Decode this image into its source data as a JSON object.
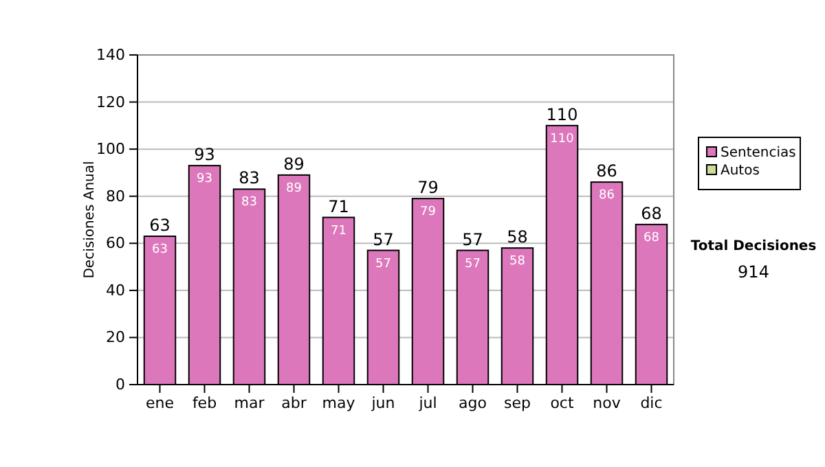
{
  "chart_data": {
    "type": "bar",
    "stacked": true,
    "ylabel": "Decisiones Anual",
    "categories": [
      "ene",
      "feb",
      "mar",
      "abr",
      "may",
      "jun",
      "jul",
      "ago",
      "sep",
      "oct",
      "nov",
      "dic"
    ],
    "series": [
      {
        "name": "Sentencias",
        "color": "#dd77bb",
        "values": [
          63,
          93,
          83,
          89,
          71,
          57,
          79,
          57,
          58,
          110,
          86,
          68
        ],
        "value_labels": [
          "63",
          "93",
          "83",
          "89",
          "71",
          "57",
          "79",
          "57",
          "58",
          "110",
          "86",
          "68"
        ]
      },
      {
        "name": "Autos",
        "color": "#ccdd99",
        "values": [
          0,
          0,
          0,
          0,
          0,
          0,
          0,
          0,
          0,
          0,
          0,
          0
        ]
      }
    ],
    "totals": [
      "63",
      "93",
      "83",
      "89",
      "71",
      "57",
      "79",
      "57",
      "58",
      "110",
      "86",
      "68"
    ],
    "ylim": [
      0,
      140
    ],
    "yticks": [
      0,
      20,
      40,
      60,
      80,
      100,
      120,
      140
    ],
    "grid": "y",
    "legend": "right",
    "annotations": [
      "Total Decisiones",
      "914"
    ]
  }
}
